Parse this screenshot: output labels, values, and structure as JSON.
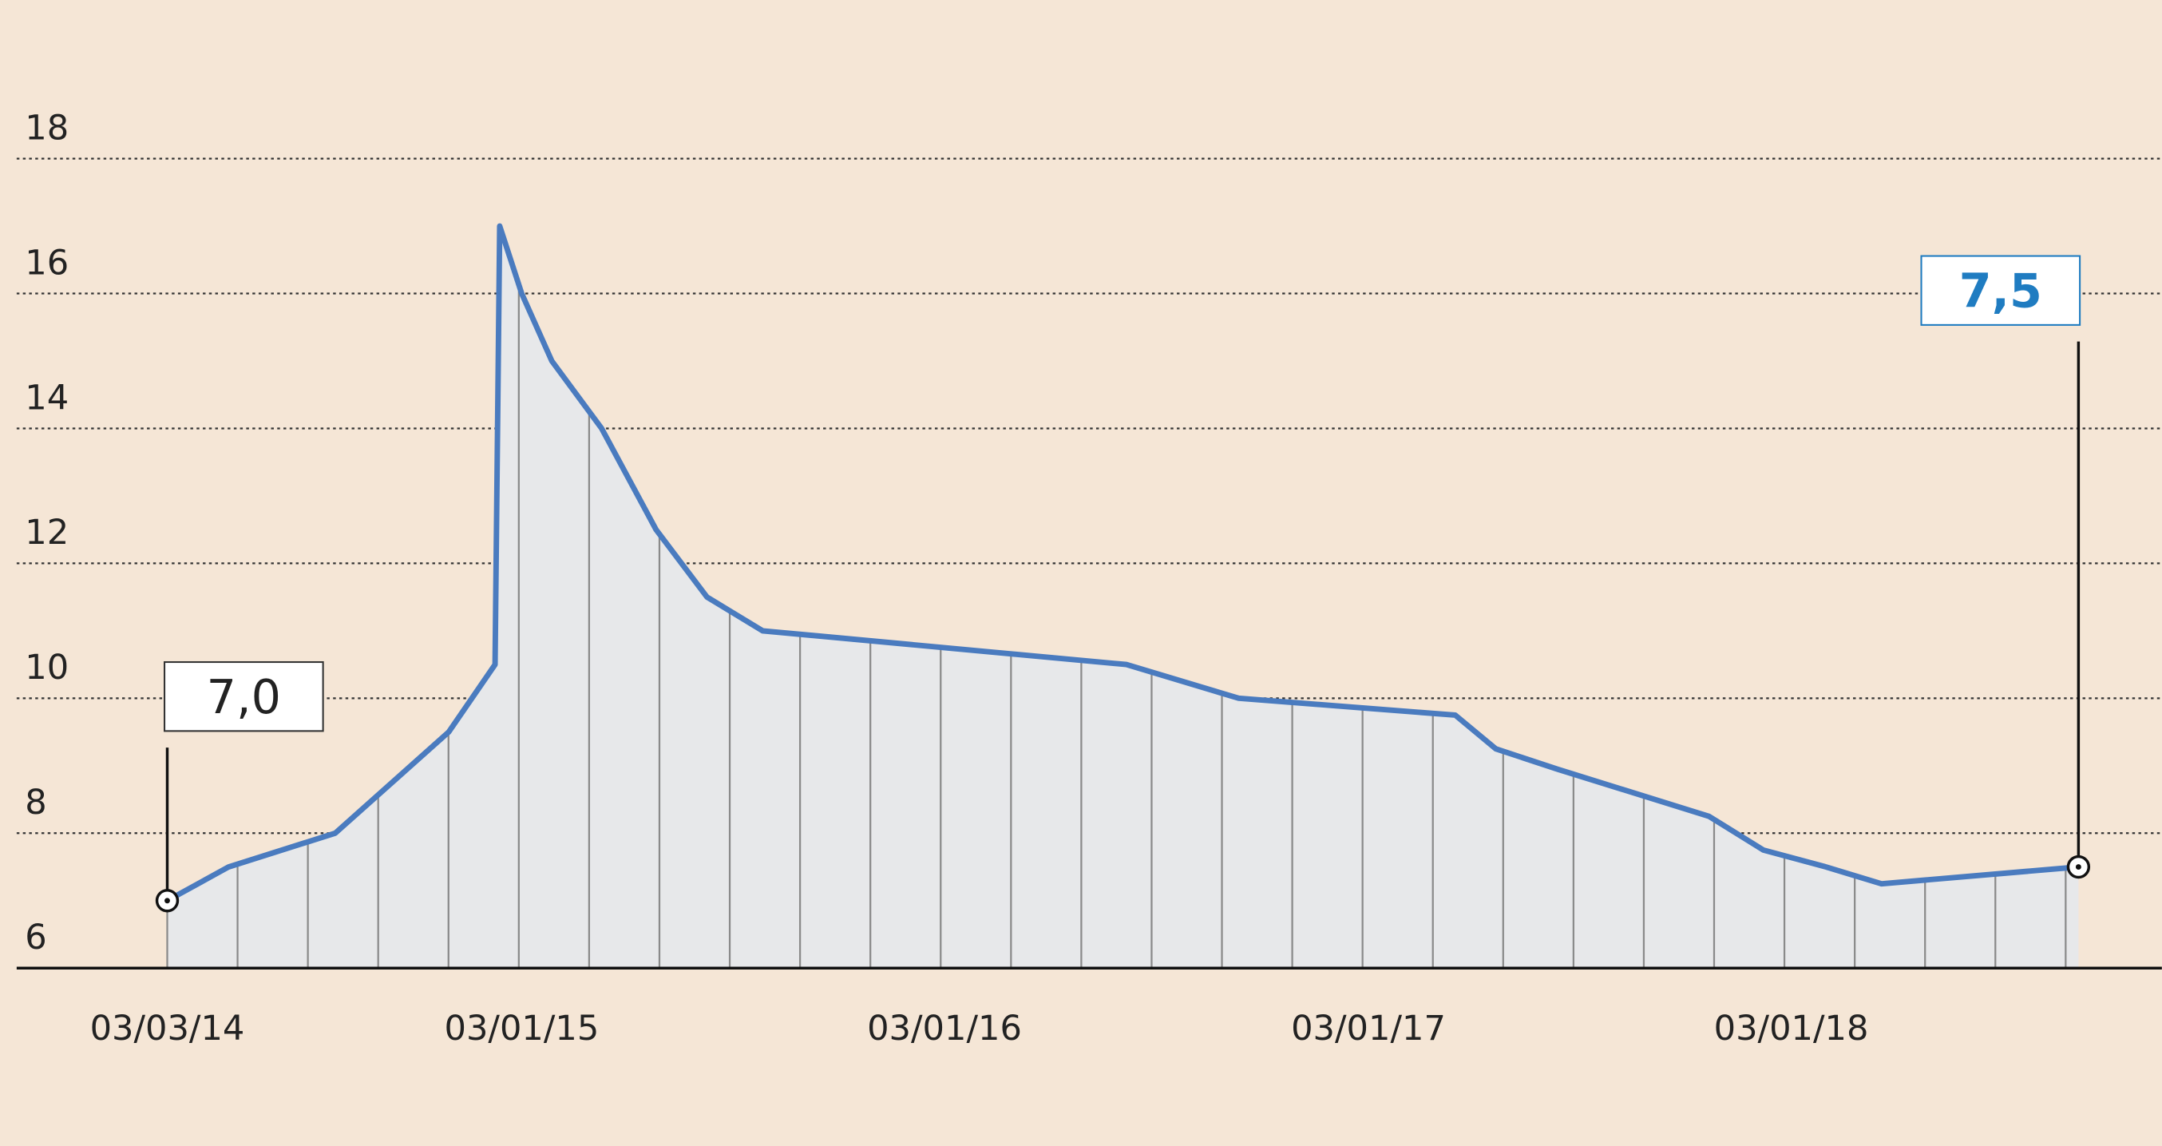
{
  "chart_data": {
    "type": "line",
    "x": [
      "2014-03-03",
      "2014-04-25",
      "2014-07-26",
      "2014-11-01",
      "2014-12-11",
      "2014-12-15",
      "2015-01-03",
      "2015-01-29",
      "2015-03-13",
      "2015-04-29",
      "2015-06-12",
      "2015-07-30",
      "2016-06-08",
      "2016-09-13",
      "2017-03-19",
      "2017-04-23",
      "2017-06-15",
      "2017-10-24",
      "2017-12-10",
      "2018-02-02",
      "2018-03-22",
      "2018-09-08"
    ],
    "series": [
      {
        "color": "#4a7bbf",
        "values": [
          7.0,
          7.5,
          8.0,
          9.5,
          10.5,
          17.0,
          16.0,
          15.0,
          14.0,
          12.5,
          11.5,
          11.0,
          10.5,
          10.0,
          9.75,
          9.25,
          8.95,
          8.25,
          7.75,
          7.5,
          7.25,
          7.5
        ],
        "value_labels": [
          "7,0",
          null,
          null,
          null,
          null,
          null,
          null,
          null,
          null,
          null,
          null,
          null,
          null,
          null,
          null,
          null,
          null,
          null,
          null,
          null,
          null,
          "7,5"
        ]
      }
    ],
    "xlim": [
      "2013-10-24",
      "2018-11-19"
    ],
    "xticks": [
      {
        "value": "2014-03-03",
        "label": "03/03/14"
      },
      {
        "value": "2015-01-03",
        "label": "03/01/15"
      },
      {
        "value": "2016-01-03",
        "label": "03/01/16"
      },
      {
        "value": "2017-01-03",
        "label": "03/01/17"
      },
      {
        "value": "2018-01-03",
        "label": "03/01/18"
      }
    ],
    "ylim": [
      6,
      18
    ],
    "yticks": [
      6,
      8,
      10,
      12,
      14,
      16,
      18
    ],
    "grid": true,
    "area_color": "#e7e8ea",
    "last_label_color": "#1f7cc1"
  }
}
